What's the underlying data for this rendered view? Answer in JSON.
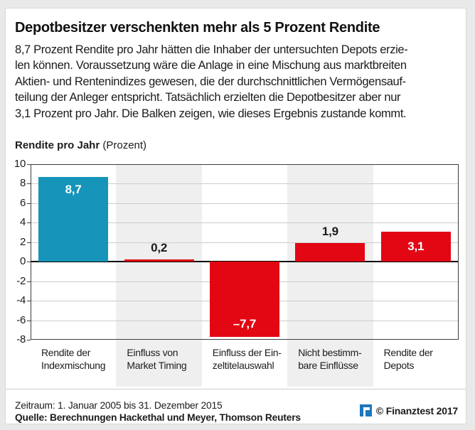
{
  "page": {
    "background": "#e9e9e9",
    "card_background": "#ffffff",
    "card_border": "#d8d8d8"
  },
  "header": {
    "title": "Depotbesitzer verschenkten mehr als 5 Prozent Rendite"
  },
  "intro": {
    "lines": [
      "8,7 Prozent Rendite pro Jahr hätten die Inhaber der untersuchten Depots erzie-",
      "len können. Voraussetzung wäre die Anlage in eine Mischung aus marktbreiten",
      "Aktien- und Rentenindizes gewesen, die der durchschnittlichen Vermögensauf-",
      "teilung der Anleger entspricht. Tatsächlich erzielten die Depotbesitzer aber nur",
      "3,1 Prozent pro Jahr. Die Balken zeigen, wie dieses Ergebnis zustande kommt."
    ]
  },
  "chart_data": {
    "type": "bar",
    "title": "Rendite pro Jahr",
    "title_note": "(Prozent)",
    "ylim": [
      -8,
      10
    ],
    "ytick_step": 2,
    "yticks": [
      10,
      8,
      6,
      4,
      2,
      0,
      -2,
      -4,
      -6,
      -8
    ],
    "grid": true,
    "legend_position": "none",
    "shaded_columns": [
      1,
      3
    ],
    "categories": [
      "Rendite der Indexmischung",
      "Einfluss von Market Timing",
      "Einfluss der Einzeltitelauswahl",
      "Nicht bestimmbare Einflüsse",
      "Rendite der Depots"
    ],
    "category_lines": [
      [
        "Rendite der",
        "Indexmischung"
      ],
      [
        "Einfluss von",
        "Market Timing"
      ],
      [
        "Einfluss der Ein-",
        "zeltitelauswahl"
      ],
      [
        "Nicht bestimm-",
        "bare Einflüsse"
      ],
      [
        "Rendite der",
        "Depots"
      ]
    ],
    "values": [
      8.7,
      0.2,
      -7.7,
      1.9,
      3.1
    ],
    "value_labels": [
      "8,7",
      "0,2",
      "–7,7",
      "1,9",
      "3,1"
    ],
    "bar_colors": [
      "#1694ba",
      "#e30613",
      "#e30613",
      "#e30613",
      "#e30613"
    ],
    "label_pos": [
      "inside-top",
      "above",
      "inside-bottom",
      "above",
      "inside-middle"
    ],
    "colors": {
      "teal": "#1694ba",
      "red": "#e30613",
      "band": "#efefef",
      "grid": "#cccccc",
      "zero_line": "#000000",
      "frame": "#3d3d3d",
      "label_inside": "#ffffff",
      "label_outside": "#1a1a1a"
    }
  },
  "footer": {
    "zeitraum": "Zeitraum: 1. Januar 2005 bis 31. Dezember 2015",
    "quelle": "Quelle: Berechnungen Hackethal und Meyer, Thomson Reuters",
    "copyright": "© Finanztest 2017",
    "logo_color": "#1c76bc"
  }
}
